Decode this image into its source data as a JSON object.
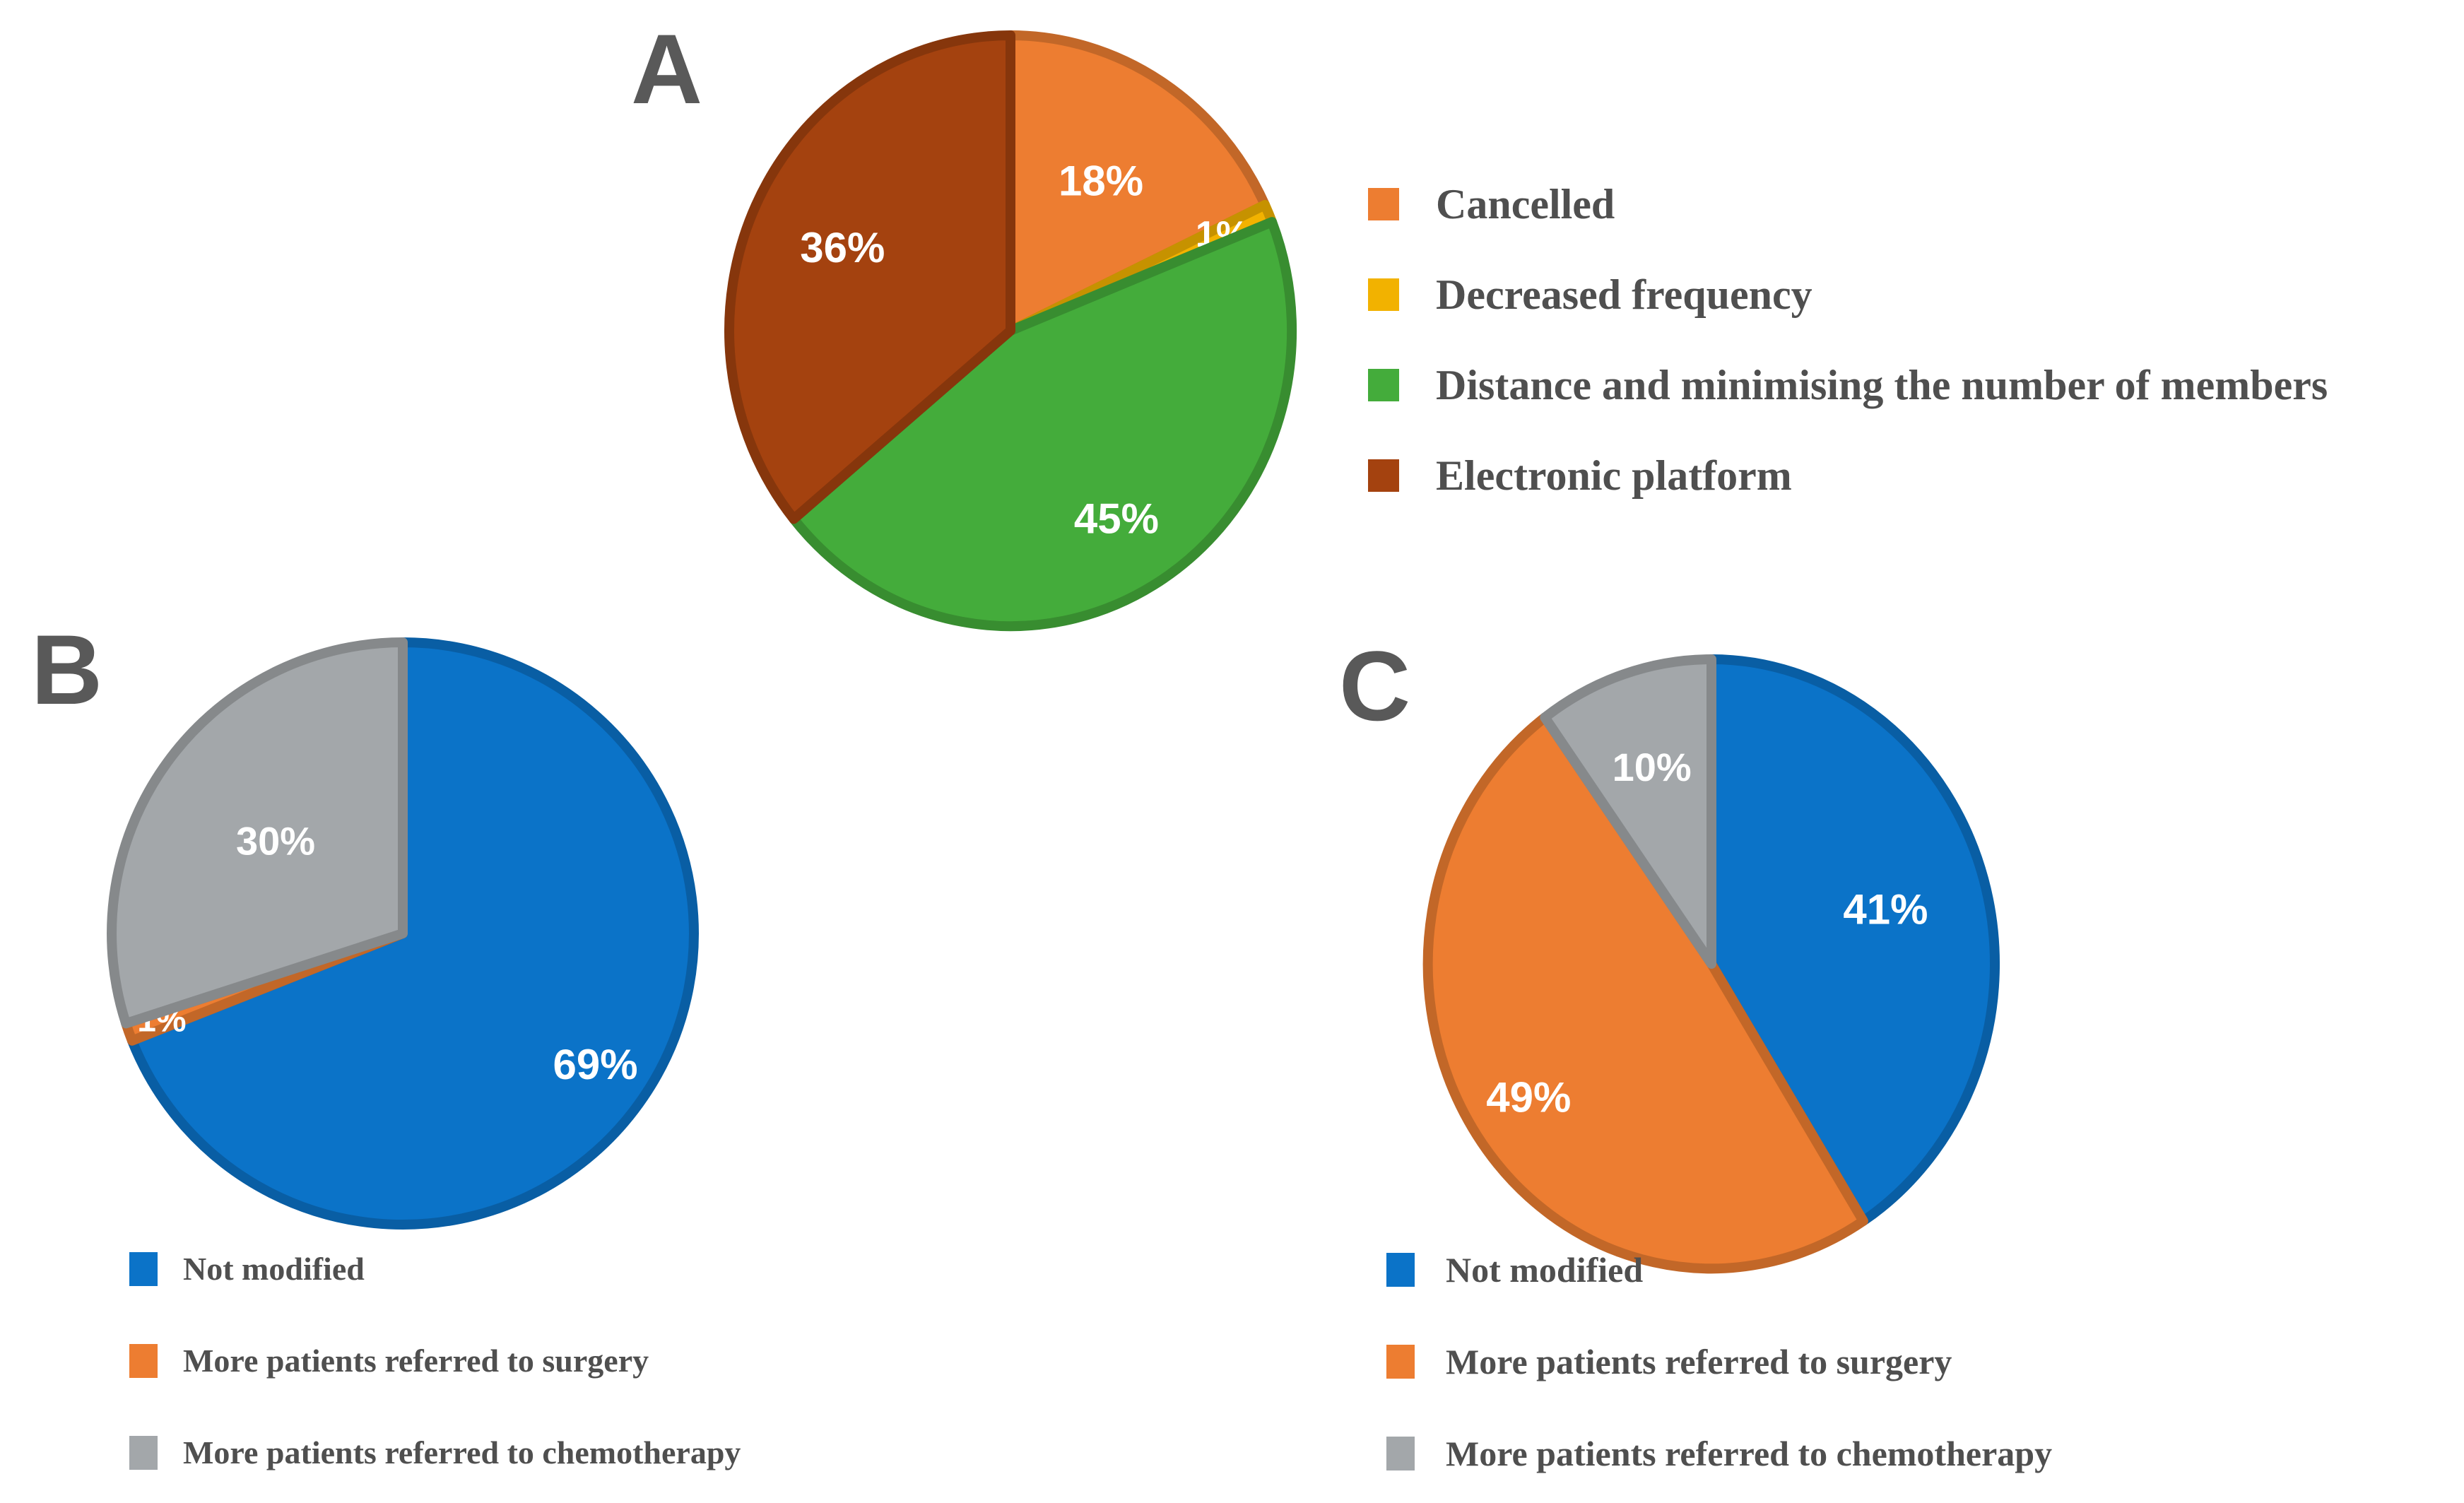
{
  "figure": {
    "background": "#FFFFFF",
    "panel_letter_color": "#595959",
    "legend_text_color": "#4F4F4F",
    "value_label_color": "#FFFFFF"
  },
  "chart_data": [
    {
      "type": "pie",
      "panel": "A",
      "start_angle": "12-oclock",
      "direction": "clockwise",
      "legend_position": "right",
      "slices": [
        {
          "label": "Cancelled",
          "value": 18,
          "pct_label": "18%",
          "color": "#ED7D31",
          "label_r": 0.6,
          "label_size": 60
        },
        {
          "label": "Decreased frequency",
          "value": 1,
          "pct_label": "1%",
          "color": "#F2B200",
          "label_r": 0.82,
          "label_size": 52
        },
        {
          "label": "Distance and minimising the number of members",
          "value": 45,
          "pct_label": "45%",
          "color": "#44AC3B",
          "label_r": 0.74,
          "label_size": 60
        },
        {
          "label": "Electronic platform",
          "value": 36,
          "pct_label": "36%",
          "color": "#A4420F",
          "label_r": 0.66,
          "label_size": 60
        }
      ]
    },
    {
      "type": "pie",
      "panel": "B",
      "start_angle": "12-oclock",
      "direction": "clockwise",
      "legend_position": "below",
      "slices": [
        {
          "label": "Not modified",
          "value": 69,
          "pct_label": "69%",
          "color": "#0B73C8",
          "label_r": 0.8,
          "label_size": 60
        },
        {
          "label": "More patients referred to surgery",
          "value": 1,
          "pct_label": "1%",
          "color": "#ED7D31",
          "label_r": 0.88,
          "label_size": 48
        },
        {
          "label": "More patients referred to chemotherapy",
          "value": 30,
          "pct_label": "30%",
          "color": "#A3A7AA",
          "label_r": 0.54,
          "label_size": 56
        }
      ]
    },
    {
      "type": "pie",
      "panel": "C",
      "start_angle": "12-oclock",
      "direction": "clockwise",
      "legend_position": "below",
      "slices": [
        {
          "label": "Not modified",
          "value": 41,
          "pct_label": "41%",
          "color": "#0B73C8",
          "label_r": 0.64,
          "label_size": 60
        },
        {
          "label": "More patients referred to surgery",
          "value": 49,
          "pct_label": "49%",
          "color": "#ED7D31",
          "label_r": 0.78,
          "label_size": 60
        },
        {
          "label": "More patients referred to chemotherapy",
          "value": 10,
          "pct_label": "10%",
          "color": "#A3A7AA",
          "label_r": 0.68,
          "label_size": 56
        }
      ]
    }
  ]
}
